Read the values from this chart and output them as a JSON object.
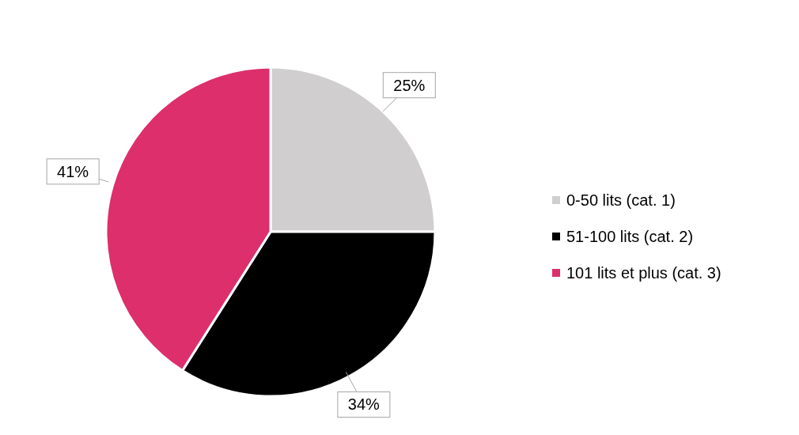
{
  "chart_data": {
    "type": "pie",
    "categories": [
      "0-50 lits (cat. 1)",
      "51-100 lits (cat. 2)",
      "101 lits et plus (cat. 3)"
    ],
    "values": [
      25,
      34,
      41
    ],
    "colors": [
      "#d0cece",
      "#000000",
      "#dc2f6b"
    ],
    "value_labels": [
      "25%",
      "34%",
      "41%"
    ],
    "legend": "right"
  }
}
